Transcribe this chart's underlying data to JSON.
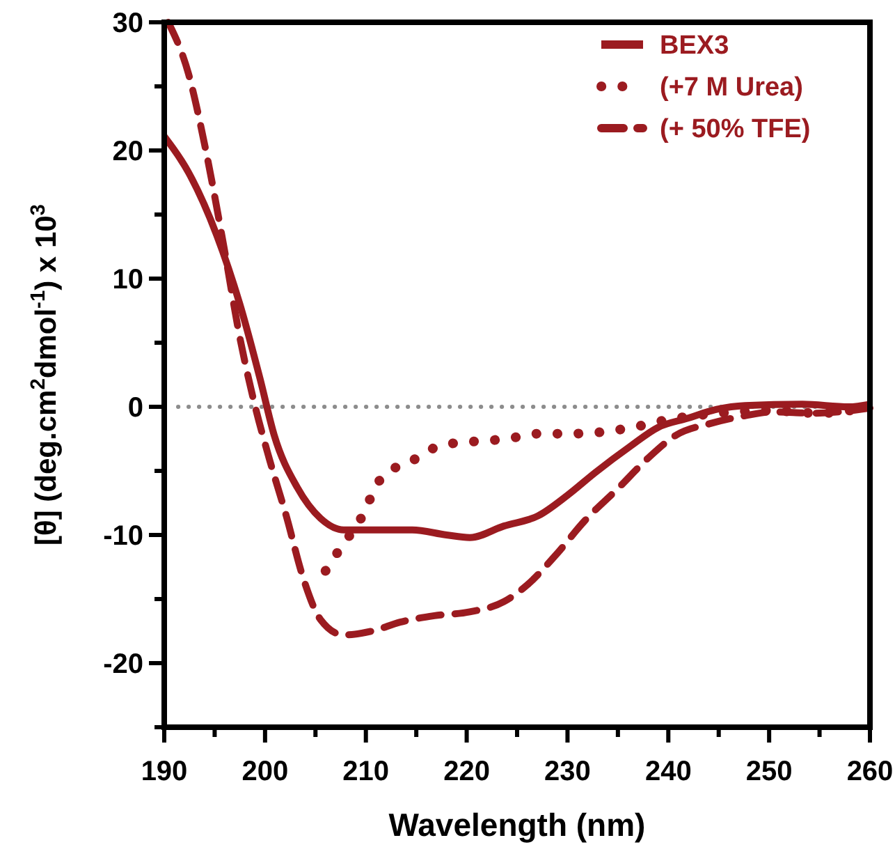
{
  "chart_data": {
    "type": "line",
    "xlabel": "Wavelength (nm)",
    "ylabel": "[θ] (deg.cm$^{2}$dmol$^{-1}$) x 10$^{3}$",
    "xlim": [
      190,
      260
    ],
    "ylim": [
      -25,
      30
    ],
    "xticks": [
      190,
      {
        "value": 195,
        "label": null
      },
      200,
      {
        "value": 205,
        "label": null
      },
      210,
      {
        "value": 215,
        "label": null
      },
      220,
      {
        "value": 225,
        "label": null
      },
      230,
      {
        "value": 235,
        "label": null
      },
      240,
      {
        "value": 245,
        "label": null
      },
      250,
      {
        "value": 255,
        "label": null
      },
      260
    ],
    "yticks": [
      {
        "value": -25,
        "label": null
      },
      -20,
      {
        "value": -15,
        "label": null
      },
      -10,
      {
        "value": -5,
        "label": null
      },
      0,
      {
        "value": 5,
        "label": null
      },
      10,
      {
        "value": 15,
        "label": null
      },
      20,
      {
        "value": 25,
        "label": null
      },
      30
    ],
    "grid": false,
    "legend": "top right",
    "ref_lines": [
      {
        "axis": "y",
        "value": 0,
        "color": "#8c8c8c",
        "line_style": "dotted"
      }
    ],
    "series": [
      {
        "name": "BEX3",
        "color": "#9b1b20",
        "line_style": "solid",
        "x": [
          190,
          192.4,
          195.2,
          197.5,
          199.5,
          200.9,
          203.2,
          205.5,
          207.8,
          210.6,
          214.6,
          218,
          220.3,
          223.7,
          227.1,
          230,
          232.8,
          236.2,
          239,
          241.9,
          244.8,
          247.6,
          253.3,
          257.9,
          260
        ],
        "values": [
          21.1,
          18.3,
          13.4,
          8,
          2.2,
          -2.2,
          -6.3,
          -8.7,
          -9.6,
          -9.6,
          -9.6,
          -10,
          -10.2,
          -9.3,
          -8.5,
          -6.9,
          -5.1,
          -3.1,
          -1.6,
          -0.9,
          -0.2,
          0.1,
          0.2,
          0,
          0.2
        ]
      },
      {
        "name": "(+7 M Urea)",
        "color": "#9b1b20",
        "line_style": "dotted",
        "x": [
          206,
          207.5,
          209.3,
          211.6,
          214.6,
          217.5,
          220.8,
          224,
          227,
          230,
          233,
          236.5,
          240,
          245,
          250,
          255,
          260
        ],
        "values": [
          -12.8,
          -11,
          -9,
          -5.5,
          -4.2,
          -3,
          -2.7,
          -2.5,
          -2.1,
          -2.1,
          -2,
          -1.6,
          -1,
          -0.5,
          -0.3,
          -0.5,
          0
        ]
      },
      {
        "name": "(+ 50% TFE)",
        "color": "#9b1b20",
        "line_style": "dashed",
        "x": [
          190.4,
          192.4,
          194.1,
          195.8,
          197.5,
          198.9,
          200.4,
          202.1,
          203.8,
          205.5,
          207.8,
          210.6,
          213.4,
          216.8,
          220.3,
          223.7,
          226,
          228.8,
          231.7,
          235.1,
          238,
          240.8,
          244.2,
          247.6,
          250.4,
          254.4,
          260
        ],
        "values": [
          30,
          26,
          20.1,
          13,
          5.4,
          0.4,
          -4,
          -8.5,
          -13.4,
          -16.6,
          -17.8,
          -17.5,
          -16.8,
          -16.3,
          -16,
          -15.2,
          -13.9,
          -11.6,
          -8.9,
          -6.3,
          -4,
          -2.2,
          -1.3,
          -0.7,
          -0.4,
          -0.5,
          -0.1
        ]
      }
    ]
  }
}
